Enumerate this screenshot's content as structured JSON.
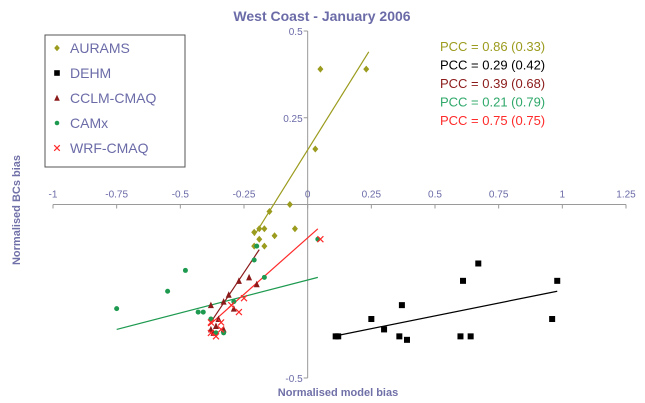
{
  "chart_data": {
    "type": "scatter",
    "title": "West Coast - January 2006",
    "xlabel": "Normalised model bias",
    "ylabel": "Normalised BCs bias",
    "xlim": [
      -1,
      1.25
    ],
    "ylim": [
      -0.5,
      0.5
    ],
    "xticks": [
      "-1",
      "-0.75",
      "-0.5",
      "-0.25",
      "0",
      "0.25",
      "0.5",
      "0.75",
      "1",
      "1.25"
    ],
    "yticks": [
      "-0.5",
      "0.25",
      "0.5"
    ],
    "legend_position": "top-left",
    "series": [
      {
        "name": "AURAMS",
        "marker": "diamond",
        "color": "#9b9b1e",
        "points": [
          [
            0.05,
            0.39
          ],
          [
            0.23,
            0.39
          ],
          [
            0.03,
            0.16
          ],
          [
            -0.07,
            0.0
          ],
          [
            -0.15,
            -0.02
          ],
          [
            -0.19,
            -0.07
          ],
          [
            -0.17,
            -0.07
          ],
          [
            -0.21,
            -0.08
          ],
          [
            -0.13,
            -0.09
          ],
          [
            -0.05,
            -0.07
          ],
          [
            -0.17,
            -0.12
          ],
          [
            -0.21,
            -0.12
          ],
          [
            -0.19,
            -0.1
          ]
        ],
        "trendline": [
          [
            -0.21,
            -0.09
          ],
          [
            0.24,
            0.44
          ]
        ]
      },
      {
        "name": "DEHM",
        "marker": "square",
        "color": "#000000",
        "points": [
          [
            0.11,
            -0.38
          ],
          [
            0.12,
            -0.38
          ],
          [
            0.25,
            -0.33
          ],
          [
            0.3,
            -0.36
          ],
          [
            0.36,
            -0.38
          ],
          [
            0.39,
            -0.39
          ],
          [
            0.37,
            -0.29
          ],
          [
            0.6,
            -0.38
          ],
          [
            0.64,
            -0.38
          ],
          [
            0.61,
            -0.22
          ],
          [
            0.67,
            -0.17
          ],
          [
            0.96,
            -0.33
          ],
          [
            0.98,
            -0.22
          ]
        ],
        "trendline": [
          [
            0.1,
            -0.38
          ],
          [
            0.98,
            -0.25
          ]
        ]
      },
      {
        "name": "CCLM-CMAQ",
        "marker": "triangle",
        "color": "#8b1a1a",
        "points": [
          [
            -0.38,
            -0.36
          ],
          [
            -0.33,
            -0.36
          ],
          [
            -0.27,
            -0.22
          ],
          [
            -0.31,
            -0.26
          ],
          [
            -0.38,
            -0.29
          ],
          [
            -0.2,
            -0.23
          ],
          [
            -0.36,
            -0.35
          ],
          [
            -0.35,
            -0.33
          ],
          [
            -0.29,
            -0.3
          ],
          [
            -0.23,
            -0.21
          ],
          [
            -0.33,
            -0.28
          ],
          [
            -0.37,
            -0.37
          ]
        ],
        "trendline": [
          [
            -0.39,
            -0.35
          ],
          [
            -0.19,
            -0.13
          ]
        ]
      },
      {
        "name": "CAMx",
        "marker": "circle",
        "color": "#1e9a50",
        "points": [
          [
            -0.75,
            -0.3
          ],
          [
            -0.55,
            -0.25
          ],
          [
            -0.48,
            -0.19
          ],
          [
            -0.43,
            -0.31
          ],
          [
            -0.38,
            -0.33
          ],
          [
            -0.36,
            -0.37
          ],
          [
            -0.33,
            -0.37
          ],
          [
            -0.29,
            -0.28
          ],
          [
            -0.21,
            -0.16
          ],
          [
            -0.2,
            -0.12
          ],
          [
            -0.17,
            -0.21
          ],
          [
            0.04,
            -0.1
          ],
          [
            -0.41,
            -0.31
          ]
        ],
        "trendline": [
          [
            -0.75,
            -0.36
          ],
          [
            0.04,
            -0.21
          ]
        ]
      },
      {
        "name": "WRF-CMAQ",
        "marker": "x",
        "color": "#ff2a2a",
        "points": [
          [
            -0.38,
            -0.34
          ],
          [
            -0.36,
            -0.38
          ],
          [
            -0.34,
            -0.34
          ],
          [
            -0.3,
            -0.29
          ],
          [
            -0.27,
            -0.31
          ],
          [
            -0.34,
            -0.36
          ],
          [
            -0.38,
            -0.37
          ],
          [
            -0.25,
            -0.27
          ],
          [
            0.05,
            -0.1
          ]
        ],
        "trendline": [
          [
            -0.39,
            -0.35
          ],
          [
            0.04,
            -0.07
          ]
        ]
      }
    ],
    "annotations": [
      {
        "text": "PCC = 0.86 (0.33)",
        "color": "#9b9b1e"
      },
      {
        "text": "PCC = 0.29 (0.42)",
        "color": "#000000"
      },
      {
        "text": "PCC = 0.39 (0.68)",
        "color": "#8b1a1a"
      },
      {
        "text": "PCC = 0.21 (0.79)",
        "color": "#2fa86a"
      },
      {
        "text": "PCC = 0.75 (0.75)",
        "color": "#ff2a2a"
      }
    ]
  }
}
